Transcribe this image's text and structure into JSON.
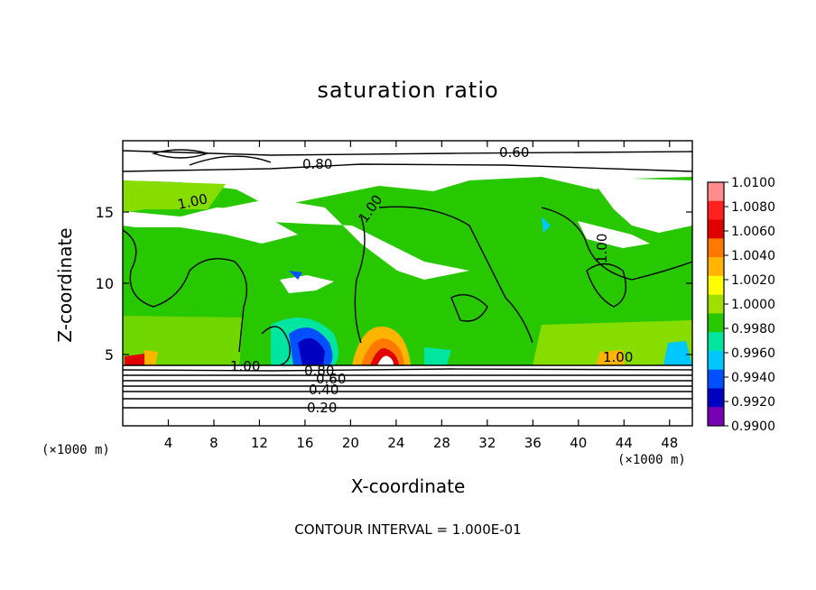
{
  "chart_data": {
    "type": "heatmap",
    "title": "saturation ratio",
    "xlabel": "X-coordinate",
    "ylabel": "Z-coordinate",
    "x_unit": "(×1000 m)",
    "x_unit_right": "(×1000 m)",
    "xlim": [
      0,
      50
    ],
    "ylim": [
      0,
      20
    ],
    "x_ticks": [
      4,
      8,
      12,
      16,
      20,
      24,
      28,
      32,
      36,
      40,
      44,
      48
    ],
    "y_ticks": [
      5,
      10,
      15
    ],
    "footer": "CONTOUR INTERVAL = 1.000E-01",
    "colorbar": {
      "labels": [
        "1.0100",
        "1.0080",
        "1.0060",
        "1.0040",
        "1.0020",
        "1.0000",
        "0.9980",
        "0.9960",
        "0.9940",
        "0.9920",
        "0.9900"
      ],
      "colors": [
        "#ff8c8c",
        "#ff2020",
        "#e00000",
        "#ff7800",
        "#ffb400",
        "#ffff00",
        "#a0e000",
        "#28c800",
        "#00e6a0",
        "#00c8ff",
        "#0050ff",
        "#0000c0",
        "#7800b4"
      ]
    },
    "contour_labels": [
      "0.60",
      "0.80",
      "1.00",
      "1.00",
      "1.00",
      "1.00",
      "1.00",
      "0.80",
      "0.60",
      "0.40",
      "0.20"
    ],
    "contour_interval": 0.1
  }
}
